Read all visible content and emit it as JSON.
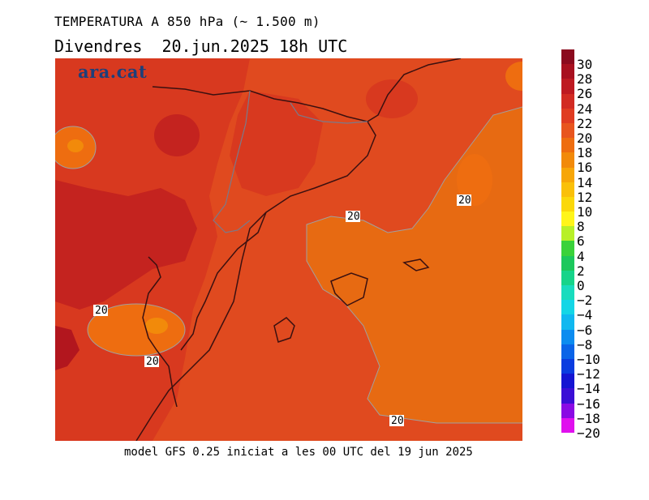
{
  "header": {
    "title": "TEMPERATURA A 850 hPa (~ 1.500 m)",
    "subtitle": "Divendres  20.jun.2025 18h UTC"
  },
  "footer": {
    "text": "model GFS 0.25 iniciat a les 00 UTC del 19 jun 2025"
  },
  "logo": {
    "text": "ara.cat"
  },
  "map": {
    "contour_labels": [
      "20",
      "20",
      "20",
      "20",
      "20"
    ]
  },
  "legend": {
    "items": [
      {
        "label": "30",
        "color": "#8b0a1e"
      },
      {
        "label": "28",
        "color": "#a8101f"
      },
      {
        "label": "26",
        "color": "#be1a22"
      },
      {
        "label": "24",
        "color": "#d22b23"
      },
      {
        "label": "22",
        "color": "#e03c22"
      },
      {
        "label": "20",
        "color": "#e8551e"
      },
      {
        "label": "18",
        "color": "#ee6d10"
      },
      {
        "label": "16",
        "color": "#f28a0a"
      },
      {
        "label": "14",
        "color": "#f7a608"
      },
      {
        "label": "12",
        "color": "#fac009"
      },
      {
        "label": "10",
        "color": "#fbd80a"
      },
      {
        "label": "8",
        "color": "#fff51a"
      },
      {
        "label": "6",
        "color": "#b8f028"
      },
      {
        "label": "4",
        "color": "#3ad23a"
      },
      {
        "label": "2",
        "color": "#1cc85c"
      },
      {
        "label": "0",
        "color": "#16d48a"
      },
      {
        "label": "−2",
        "color": "#18dcbe"
      },
      {
        "label": "−4",
        "color": "#14d6e6"
      },
      {
        "label": "−6",
        "color": "#10b8f0"
      },
      {
        "label": "−8",
        "color": "#0c8cf0"
      },
      {
        "label": "−10",
        "color": "#0a64e8"
      },
      {
        "label": "−12",
        "color": "#0a3ce0"
      },
      {
        "label": "−14",
        "color": "#1414d2"
      },
      {
        "label": "−16",
        "color": "#3a0ed6"
      },
      {
        "label": "−18",
        "color": "#8a0ae4"
      },
      {
        "label": "−20",
        "color": "#e010ee"
      }
    ]
  }
}
